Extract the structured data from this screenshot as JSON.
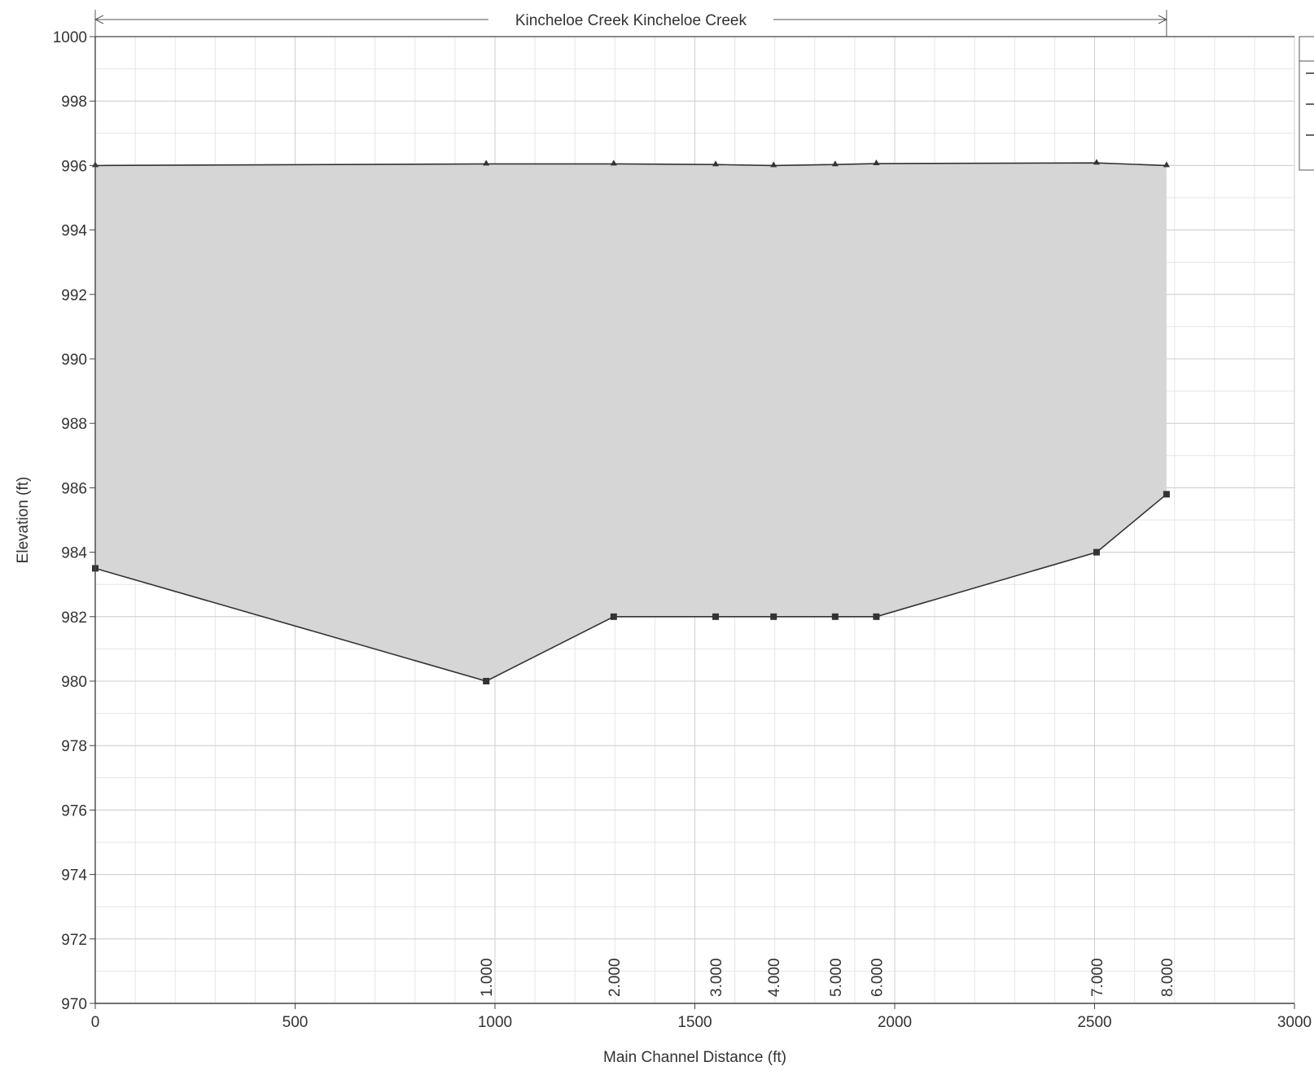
{
  "chart_data": {
    "type": "area",
    "title": "",
    "reach_label": "Kincheloe Creek Kincheloe Creek",
    "xlabel": "Main Channel Distance (ft)",
    "ylabel": "Elevation (ft)",
    "xlim": [
      0,
      3000
    ],
    "ylim": [
      970,
      1000
    ],
    "x_ticks": [
      0,
      500,
      1000,
      1500,
      2000,
      2500,
      3000
    ],
    "y_ticks": [
      970,
      972,
      974,
      976,
      978,
      980,
      982,
      984,
      986,
      988,
      990,
      992,
      994,
      996,
      998,
      1000
    ],
    "grid": true,
    "reach_extent": [
      0,
      2680
    ],
    "series": [
      {
        "values": [
          {
            "x": 0,
            "y": 996.0
          },
          {
            "x": 978,
            "y": 996.05
          },
          {
            "x": 1297,
            "y": 996.05
          },
          {
            "x": 1552,
            "y": 996.03
          },
          {
            "x": 1697,
            "y": 996.0
          },
          {
            "x": 1851,
            "y": 996.03
          },
          {
            "x": 1954,
            "y": 996.06
          },
          {
            "x": 2505,
            "y": 996.08
          },
          {
            "x": 2680,
            "y": 996.0
          }
        ],
        "color": "#333333",
        "marker": "triangle"
      },
      {
        "values": [
          {
            "x": 0,
            "y": 983.5
          },
          {
            "x": 978,
            "y": 980.0
          },
          {
            "x": 1297,
            "y": 982.0
          },
          {
            "x": 1552,
            "y": 982.0
          },
          {
            "x": 1697,
            "y": 982.0
          },
          {
            "x": 1851,
            "y": 982.0
          },
          {
            "x": 1954,
            "y": 982.0
          },
          {
            "x": 2505,
            "y": 984.0
          },
          {
            "x": 2680,
            "y": 985.8
          }
        ],
        "color": "#333333",
        "marker": "square"
      }
    ],
    "fill_color": "#d6d6d6",
    "cross_sections": [
      {
        "x": 978,
        "label": "1.000"
      },
      {
        "x": 1297,
        "label": "2.000"
      },
      {
        "x": 1552,
        "label": "3.000"
      },
      {
        "x": 1697,
        "label": "4.000"
      },
      {
        "x": 1851,
        "label": "5.000"
      },
      {
        "x": 1954,
        "label": "6.000"
      },
      {
        "x": 2505,
        "label": "7.000"
      },
      {
        "x": 2680,
        "label": "8.000"
      }
    ],
    "legend": {
      "placement": "top-right",
      "entries": 3
    }
  }
}
